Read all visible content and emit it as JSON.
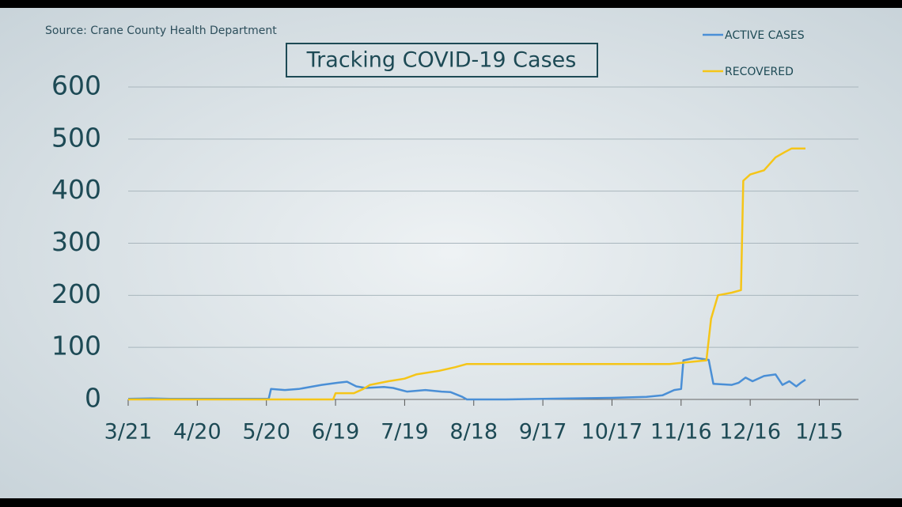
{
  "chart_data": {
    "type": "line",
    "title": "Tracking COVID-19 Cases",
    "source": "Source: Crane County Health Department",
    "xlim": [
      "3/21",
      "2/1"
    ],
    "xticks": [
      "3/21",
      "4/20",
      "5/20",
      "6/19",
      "7/19",
      "8/18",
      "9/17",
      "10/17",
      "11/16",
      "12/16",
      "1/15"
    ],
    "ylim": [
      0,
      600
    ],
    "yticks": [
      0,
      100,
      200,
      300,
      400,
      500,
      600
    ],
    "grid": true,
    "legend": "top-right",
    "series": [
      {
        "name": "ACTIVE CASES",
        "color": "#4a8fd6",
        "x": [
          "3/21",
          "3/31",
          "4/8",
          "5/21",
          "5/22",
          "5/28",
          "6/3",
          "6/13",
          "6/20",
          "6/24",
          "6/28",
          "7/2",
          "7/10",
          "7/14",
          "7/20",
          "7/28",
          "8/4",
          "8/8",
          "8/13",
          "8/15",
          "8/17",
          "9/1",
          "9/17",
          "10/17",
          "11/1",
          "11/8",
          "11/13",
          "11/16",
          "11/17",
          "11/22",
          "11/28",
          "11/30",
          "12/8",
          "12/11",
          "12/14",
          "12/17",
          "12/22",
          "12/27",
          "12/30",
          "1/2",
          "1/5",
          "1/7",
          "1/9"
        ],
        "values": [
          1,
          2,
          1,
          1,
          20,
          18,
          20,
          28,
          32,
          34,
          25,
          22,
          24,
          22,
          15,
          18,
          15,
          14,
          5,
          0,
          0,
          0,
          1,
          3,
          5,
          8,
          18,
          20,
          75,
          80,
          76,
          30,
          28,
          32,
          42,
          35,
          45,
          48,
          28,
          35,
          25,
          32,
          38
        ]
      },
      {
        "name": "RECOVERED",
        "color": "#f5c518",
        "x": [
          "3/21",
          "6/18",
          "6/19",
          "6/27",
          "7/1",
          "7/4",
          "7/12",
          "7/19",
          "7/24",
          "8/3",
          "8/10",
          "8/15",
          "11/11",
          "11/20",
          "11/27",
          "11/29",
          "12/2",
          "12/8",
          "12/12",
          "12/13",
          "12/16",
          "12/22",
          "12/27",
          "12/31",
          "1/3",
          "1/9"
        ],
        "values": [
          0,
          0,
          12,
          12,
          20,
          28,
          35,
          40,
          48,
          55,
          62,
          68,
          68,
          72,
          75,
          155,
          200,
          205,
          210,
          420,
          432,
          440,
          465,
          475,
          482,
          482
        ]
      }
    ]
  }
}
